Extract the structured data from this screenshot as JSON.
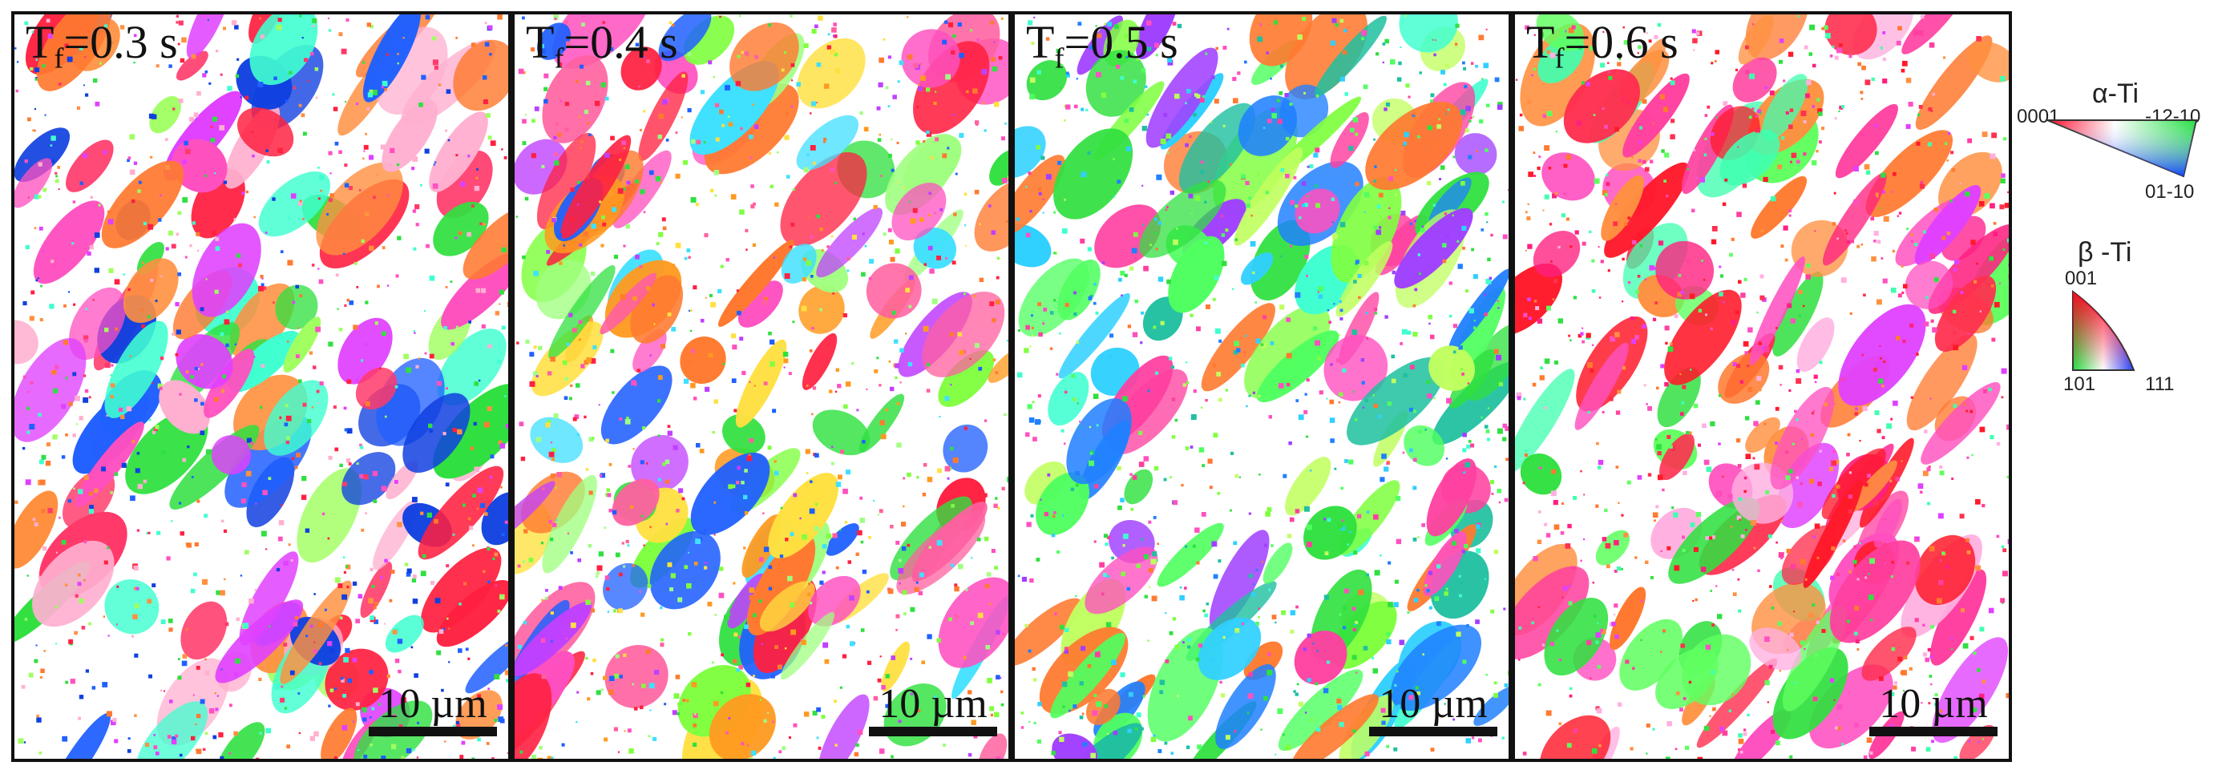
{
  "panels": [
    {
      "id": "p1",
      "label_main": "T",
      "label_sub": "f",
      "label_rest": "=0.3 s",
      "scale_label": "10 µm",
      "seed": 11,
      "palette": [
        "#ff2040",
        "#ff3a6a",
        "#ff7a30",
        "#ff9040",
        "#ff50c0",
        "#e040ff",
        "#30e040",
        "#2060ff",
        "#1040e0",
        "#a0ff60",
        "#40ffd0",
        "#ffb0d0"
      ]
    },
    {
      "id": "p2",
      "label_main": "T",
      "label_sub": "f",
      "label_rest": "=0.4 s",
      "scale_label": "10 µm",
      "seed": 23,
      "palette": [
        "#ff2040",
        "#ff7a30",
        "#ff9a20",
        "#ff50c0",
        "#c040ff",
        "#30e040",
        "#80ff40",
        "#2060ff",
        "#40e0ff",
        "#ffe040",
        "#ff60a0",
        "#a0ff80"
      ]
    },
    {
      "id": "p3",
      "label_main": "T",
      "label_sub": "f",
      "label_rest": "=0.5 s",
      "scale_label": "10 µm",
      "seed": 37,
      "palette": [
        "#30e040",
        "#50ff60",
        "#40ffd0",
        "#30d0ff",
        "#2080ff",
        "#a040ff",
        "#ff50c0",
        "#ff7a30",
        "#80ff40",
        "#20c0a0",
        "#c0ff60",
        "#ff40a0"
      ]
    },
    {
      "id": "p4",
      "label_main": "T",
      "label_sub": "f",
      "label_rest": "=0.6 s",
      "scale_label": "10 µm",
      "seed": 53,
      "palette": [
        "#ff1a2a",
        "#ff3050",
        "#ff50c0",
        "#ff7a30",
        "#ff40a0",
        "#30e040",
        "#60ff60",
        "#e040ff",
        "#ff9040",
        "#ff2080",
        "#40ffb0",
        "#ffb0e0"
      ]
    }
  ],
  "legend": {
    "alpha": {
      "title": "α-Ti",
      "corner_left": "0001",
      "corner_right": "-12-10",
      "corner_bottom": "01-10"
    },
    "beta": {
      "title": "β -Ti",
      "corner_top": "001",
      "corner_left": "101",
      "corner_right": "111"
    }
  }
}
